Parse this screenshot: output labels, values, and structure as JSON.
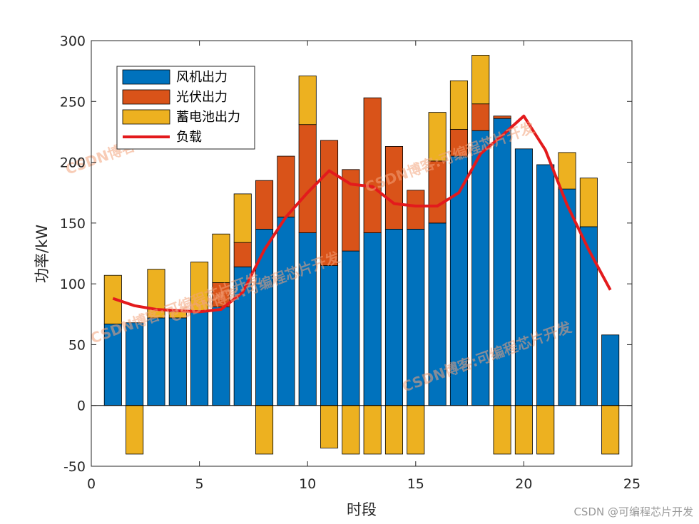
{
  "chart_data": {
    "type": "bar",
    "stacked": true,
    "xlabel": "时段",
    "ylabel": "功率/kW",
    "xlim": [
      0,
      25
    ],
    "ylim": [
      -50,
      300
    ],
    "xticks": [
      0,
      5,
      10,
      15,
      20,
      25
    ],
    "yticks": [
      -50,
      0,
      50,
      100,
      150,
      200,
      250,
      300
    ],
    "x": [
      1,
      2,
      3,
      4,
      5,
      6,
      7,
      8,
      9,
      10,
      11,
      12,
      13,
      14,
      15,
      16,
      17,
      18,
      19,
      20,
      21,
      22,
      23,
      24
    ],
    "series": [
      {
        "name": "风机出力",
        "color": "#0072BD",
        "values": [
          67,
          68,
          72,
          72,
          78,
          81,
          114,
          145,
          155,
          142,
          115,
          127,
          142,
          145,
          145,
          150,
          205,
          226,
          236,
          211,
          198,
          178,
          147,
          58
        ]
      },
      {
        "name": "光伏出力",
        "color": "#D95319",
        "values": [
          0,
          0,
          0,
          0,
          0,
          20,
          20,
          40,
          50,
          89,
          103,
          67,
          111,
          68,
          32,
          51,
          22,
          22,
          2,
          0,
          0,
          0,
          0,
          0
        ]
      },
      {
        "name": "蓄电池出力",
        "color": "#EDB120",
        "values": [
          40,
          -40,
          40,
          5,
          40,
          40,
          40,
          -40,
          0,
          40,
          -35,
          -40,
          -40,
          -40,
          -40,
          40,
          40,
          40,
          -40,
          -40,
          -40,
          30,
          40,
          -40
        ]
      },
      {
        "name": "负载",
        "color": "#E31A1C",
        "kind": "line",
        "values": [
          88,
          82,
          79,
          78,
          77,
          79,
          93,
          128,
          155,
          175,
          193,
          182,
          180,
          166,
          164,
          164,
          175,
          207,
          222,
          238,
          210,
          165,
          128,
          95
        ]
      }
    ],
    "legend_position": "top-left"
  },
  "watermarks": [
    "CSDN博客:可编程芯片开发",
    "CSDN博客:可编程芯片开发",
    "CSDN博客:可编程芯片开发",
    "CSDN博客:可编程芯片开发",
    "CSDN博客:可编程芯片开发"
  ],
  "credit": "CSDN @可编程芯片开发"
}
